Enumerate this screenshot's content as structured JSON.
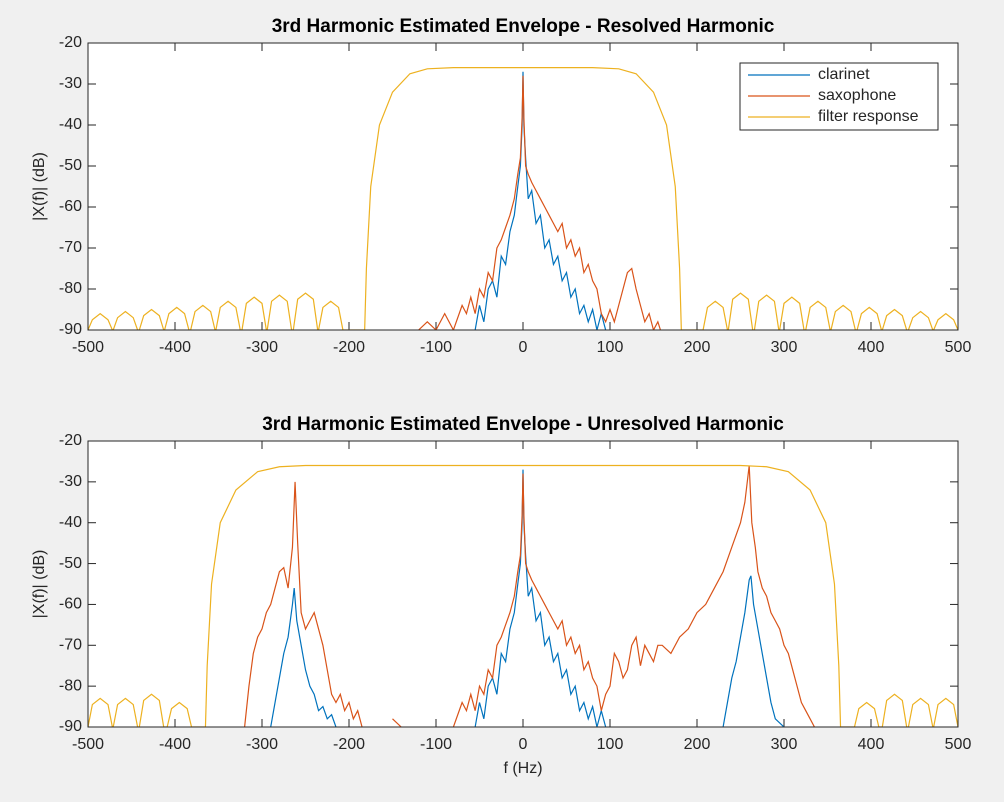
{
  "chart_data": [
    {
      "type": "line",
      "title": "3rd Harmonic Estimated Envelope - Resolved Harmonic",
      "ylabel": "|X(f)| (dB)",
      "xlim": [
        -500,
        500
      ],
      "ylim": [
        -90,
        -20
      ],
      "xticks": [
        -500,
        -400,
        -300,
        -200,
        -100,
        0,
        100,
        200,
        300,
        400,
        500
      ],
      "yticks": [
        -90,
        -80,
        -70,
        -60,
        -50,
        -40,
        -30,
        -20
      ],
      "legend": "upper right",
      "series": [
        {
          "name": "clarinet",
          "color": "#0072bd",
          "x": [
            -55,
            -50,
            -45,
            -40,
            -35,
            -30,
            -25,
            -20,
            -15,
            -10,
            -6,
            -3,
            -1,
            0,
            1,
            3,
            6,
            10,
            15,
            20,
            25,
            30,
            35,
            40,
            45,
            50,
            55,
            60,
            65,
            70,
            75,
            80,
            85,
            90,
            95
          ],
          "values": [
            -90,
            -84,
            -88,
            -80,
            -78,
            -82,
            -72,
            -74,
            -66,
            -62,
            -55,
            -50,
            -40,
            -27,
            -40,
            -48,
            -58,
            -56,
            -64,
            -62,
            -70,
            -68,
            -74,
            -72,
            -78,
            -76,
            -82,
            -80,
            -86,
            -84,
            -88,
            -85,
            -90,
            -86,
            -90
          ]
        },
        {
          "name": "saxophone",
          "color": "#d95319",
          "x": [
            -120,
            -110,
            -100,
            -90,
            -80,
            -70,
            -65,
            -60,
            -55,
            -50,
            -45,
            -40,
            -35,
            -30,
            -25,
            -20,
            -15,
            -10,
            -6,
            -3,
            -1,
            0,
            1,
            3,
            6,
            10,
            15,
            20,
            25,
            30,
            35,
            40,
            45,
            50,
            55,
            60,
            65,
            70,
            75,
            80,
            85,
            90,
            95,
            100,
            105,
            110,
            115,
            120,
            125,
            130,
            135,
            140,
            145,
            150,
            155,
            158
          ],
          "values": [
            -90,
            -88,
            -90,
            -86,
            -90,
            -84,
            -86,
            -82,
            -86,
            -80,
            -82,
            -76,
            -78,
            -70,
            -68,
            -65,
            -62,
            -58,
            -52,
            -48,
            -38,
            -28,
            -38,
            -50,
            -52,
            -54,
            -56,
            -58,
            -60,
            -62,
            -64,
            -66,
            -64,
            -70,
            -68,
            -72,
            -70,
            -76,
            -74,
            -78,
            -80,
            -86,
            -88,
            -85,
            -88,
            -84,
            -80,
            -76,
            -75,
            -80,
            -84,
            -88,
            -86,
            -90,
            -88,
            -90
          ]
        },
        {
          "name": "filter response",
          "color": "#edb120",
          "x": [
            -500,
            -495,
            -486,
            -477,
            -472,
            -471,
            -466,
            -457,
            -448,
            -443,
            -441,
            -436,
            -427,
            -418,
            -413,
            -412,
            -407,
            -398,
            -389,
            -384,
            -382,
            -377,
            -368,
            -359,
            -354,
            -353,
            -348,
            -339,
            -330,
            -325,
            -323,
            -318,
            -309,
            -300,
            -295,
            -294,
            -289,
            -280,
            -271,
            -266,
            -264,
            -259,
            -250,
            -241,
            -236,
            -235,
            -230,
            -221,
            -212,
            -207,
            -182,
            -180,
            -175,
            -165,
            -150,
            -130,
            -110,
            -80,
            80,
            110,
            130,
            150,
            165,
            175,
            180,
            182,
            207,
            212,
            221,
            230,
            235,
            236,
            241,
            250,
            259,
            264,
            266,
            271,
            280,
            289,
            294,
            295,
            300,
            309,
            318,
            323,
            325,
            330,
            339,
            348,
            353,
            354,
            359,
            368,
            377,
            382,
            384,
            389,
            398,
            407,
            412,
            413,
            418,
            427,
            436,
            441,
            443,
            448,
            457,
            466,
            471,
            472,
            477,
            486,
            495,
            500
          ],
          "values": [
            -90,
            -87.5,
            -86,
            -87.5,
            -90,
            -90,
            -87,
            -85.5,
            -87,
            -90,
            -90,
            -86.5,
            -85,
            -86.5,
            -90,
            -90,
            -86,
            -84.5,
            -86,
            -90,
            -90,
            -85.5,
            -84,
            -85.5,
            -90,
            -90,
            -84.5,
            -83,
            -84.5,
            -90,
            -90,
            -83.5,
            -82,
            -83.5,
            -90,
            -90,
            -83,
            -81.5,
            -83,
            -90,
            -90,
            -82.5,
            -81,
            -82.5,
            -90,
            -90,
            -84.5,
            -83,
            -84.5,
            -90,
            -90,
            -75,
            -55,
            -40,
            -32,
            -27.5,
            -26.3,
            -26,
            -26,
            -26.3,
            -27.5,
            -32,
            -40,
            -55,
            -75,
            -90,
            -90,
            -84.5,
            -83,
            -84.5,
            -90,
            -90,
            -82.5,
            -81,
            -82.5,
            -90,
            -90,
            -83,
            -81.5,
            -83,
            -90,
            -90,
            -83.5,
            -82,
            -83.5,
            -90,
            -90,
            -84.5,
            -83,
            -84.5,
            -90,
            -90,
            -85.5,
            -84,
            -85.5,
            -90,
            -90,
            -86,
            -84.5,
            -86,
            -90,
            -90,
            -86.5,
            -85,
            -86.5,
            -90,
            -90,
            -87,
            -85.5,
            -87,
            -90,
            -90,
            -87.5,
            -86,
            -87.5,
            -90
          ]
        }
      ]
    },
    {
      "type": "line",
      "title": "3rd Harmonic Estimated Envelope - Unresolved Harmonic",
      "ylabel": "|X(f)| (dB)",
      "xlabel": "f (Hz)",
      "xlim": [
        -500,
        500
      ],
      "ylim": [
        -90,
        -20
      ],
      "xticks": [
        -500,
        -400,
        -300,
        -200,
        -100,
        0,
        100,
        200,
        300,
        400,
        500
      ],
      "yticks": [
        -90,
        -80,
        -70,
        -60,
        -50,
        -40,
        -30,
        -20
      ],
      "series": [
        {
          "color": "#0072bd",
          "x": [
            -290,
            -285,
            -280,
            -275,
            -270,
            -265,
            -263,
            -260,
            -255,
            -250,
            -245,
            -240,
            -235,
            -230,
            -225,
            -220,
            -215,
            0,
            -55,
            -50,
            -45,
            -40,
            -35,
            -30,
            -25,
            -20,
            -15,
            -10,
            -6,
            -3,
            -1,
            0,
            1,
            3,
            6,
            10,
            15,
            20,
            25,
            30,
            35,
            40,
            45,
            50,
            55,
            60,
            65,
            70,
            75,
            80,
            85,
            90,
            95,
            0,
            230,
            235,
            240,
            245,
            250,
            255,
            260,
            262,
            265,
            270,
            275,
            280,
            285,
            290,
            300
          ],
          "values": [
            -90,
            -84,
            -78,
            -72,
            -68,
            -60,
            -56,
            -64,
            -70,
            -76,
            -80,
            -82,
            -86,
            -85,
            -88,
            -87,
            -90,
            null,
            -90,
            -84,
            -88,
            -80,
            -78,
            -82,
            -72,
            -74,
            -66,
            -62,
            -55,
            -50,
            -40,
            -27,
            -40,
            -48,
            -58,
            -56,
            -64,
            -62,
            -70,
            -68,
            -74,
            -72,
            -78,
            -76,
            -82,
            -80,
            -86,
            -84,
            -88,
            -85,
            -90,
            -86,
            -90,
            null,
            -90,
            -84,
            -78,
            -74,
            -68,
            -62,
            -54,
            -53,
            -60,
            -66,
            -72,
            -78,
            -84,
            -88,
            -90
          ]
        },
        {
          "color": "#d95319",
          "x": [
            -320,
            -315,
            -310,
            -305,
            -300,
            -295,
            -290,
            -285,
            -280,
            -275,
            -270,
            -265,
            -262,
            -259,
            -255,
            -250,
            -245,
            -240,
            -235,
            -230,
            -225,
            -220,
            -215,
            -210,
            -205,
            -200,
            -195,
            -190,
            -185,
            0,
            -150,
            -140,
            0,
            -80,
            -70,
            -65,
            -60,
            -55,
            -50,
            -45,
            -40,
            -35,
            -30,
            -25,
            -20,
            -15,
            -10,
            -6,
            -3,
            -1,
            0,
            1,
            3,
            6,
            10,
            15,
            20,
            25,
            30,
            35,
            40,
            45,
            50,
            55,
            60,
            65,
            70,
            75,
            80,
            85,
            90,
            95,
            100,
            105,
            110,
            115,
            120,
            125,
            130,
            135,
            140,
            145,
            150,
            155,
            160,
            170,
            180,
            190,
            200,
            210,
            220,
            230,
            240,
            250,
            255,
            260,
            263,
            267,
            270,
            275,
            280,
            285,
            290,
            295,
            300,
            305,
            310,
            315,
            320,
            325,
            330,
            335
          ],
          "values": [
            -90,
            -80,
            -72,
            -68,
            -66,
            -62,
            -60,
            -56,
            -52,
            -51,
            -56,
            -46,
            -30,
            -45,
            -62,
            -66,
            -64,
            -62,
            -66,
            -70,
            -76,
            -82,
            -84,
            -82,
            -86,
            -84,
            -88,
            -86,
            -90,
            null,
            -88,
            -90,
            null,
            -90,
            -84,
            -86,
            -82,
            -86,
            -80,
            -82,
            -76,
            -78,
            -70,
            -68,
            -65,
            -62,
            -58,
            -52,
            -48,
            -38,
            -28,
            -38,
            -50,
            -52,
            -54,
            -56,
            -58,
            -60,
            -62,
            -64,
            -66,
            -64,
            -70,
            -68,
            -72,
            -70,
            -76,
            -74,
            -78,
            -80,
            -86,
            -82,
            -80,
            -72,
            -74,
            -78,
            -76,
            -70,
            -68,
            -75,
            -70,
            -72,
            -74,
            -70,
            -70,
            -72,
            -68,
            -66,
            -62,
            -60,
            -56,
            -52,
            -46,
            -40,
            -35,
            -26,
            -40,
            -46,
            -52,
            -56,
            -58,
            -62,
            -64,
            -66,
            -70,
            -72,
            -76,
            -80,
            -84,
            -86,
            -88,
            -90
          ]
        },
        {
          "color": "#edb120",
          "x": [
            -500,
            -495,
            -486,
            -477,
            -472,
            -471,
            -466,
            -457,
            -448,
            -443,
            -441,
            -436,
            -427,
            -418,
            -413,
            -409,
            -404,
            -395,
            -386,
            -381,
            -365,
            -363,
            -358,
            -348,
            -330,
            -305,
            -280,
            -250,
            250,
            280,
            305,
            330,
            348,
            358,
            363,
            365,
            381,
            386,
            395,
            404,
            409,
            413,
            418,
            427,
            436,
            441,
            443,
            448,
            457,
            466,
            471,
            472,
            477,
            486,
            495,
            500
          ],
          "values": [
            -90,
            -84.5,
            -83,
            -84.5,
            -90,
            -90,
            -84.5,
            -83,
            -84.5,
            -90,
            -90,
            -83.5,
            -82,
            -83.5,
            -90,
            -90,
            -85.5,
            -84,
            -85.5,
            -90,
            -90,
            -75,
            -55,
            -40,
            -32,
            -27.5,
            -26.3,
            -26,
            -26,
            -26.3,
            -27.5,
            -32,
            -40,
            -55,
            -75,
            -90,
            -90,
            -85.5,
            -84,
            -85.5,
            -90,
            -90,
            -83.5,
            -82,
            -83.5,
            -90,
            -90,
            -84.5,
            -83,
            -84.5,
            -90,
            -90,
            -84.5,
            -83,
            -84.5,
            -90
          ]
        }
      ]
    }
  ]
}
